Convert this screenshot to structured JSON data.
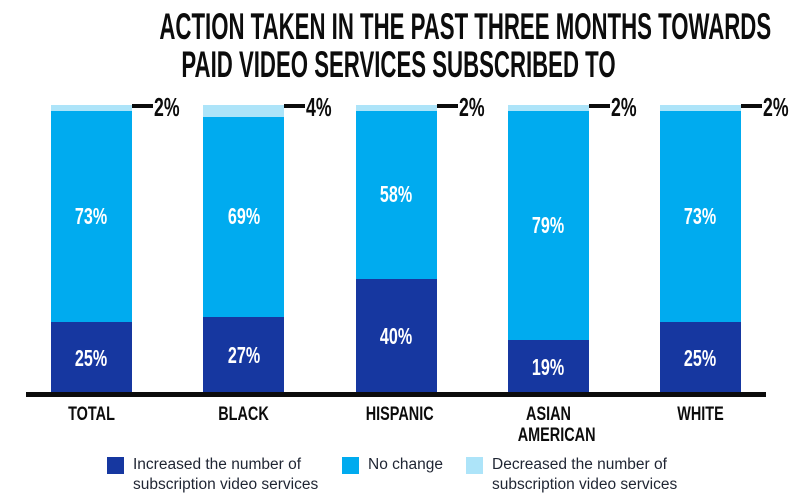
{
  "chart_data": {
    "type": "bar",
    "subtype": "stacked-percent",
    "title": "ACTION TAKEN IN THE PAST THREE MONTHS TOWARDS PAID VIDEO SERVICES SUBSCRIBED TO",
    "title_lines": [
      "ACTION TAKEN IN THE PAST THREE MONTHS TOWARDS",
      "PAID VIDEO SERVICES SUBSCRIBED TO"
    ],
    "categories": [
      "TOTAL",
      "BLACK",
      "HISPANIC",
      "ASIAN AMERICAN",
      "WHITE"
    ],
    "category_lines": [
      [
        "TOTAL"
      ],
      [
        "BLACK"
      ],
      [
        "HISPANIC"
      ],
      [
        "ASIAN",
        "AMERICAN"
      ],
      [
        "WHITE"
      ]
    ],
    "series": [
      {
        "key": "increased",
        "name": "Increased the number of subscription video services",
        "color": "#1637a0",
        "label_inside": true,
        "values": [
          25,
          27,
          40,
          19,
          25
        ]
      },
      {
        "key": "no-change",
        "name": "No change",
        "color": "#00abef",
        "label_inside": true,
        "values": [
          73,
          69,
          58,
          79,
          73
        ]
      },
      {
        "key": "decreased",
        "name": "Decreased the number of subscription video services",
        "color": "#ade4f9",
        "label_inside": false,
        "values": [
          2,
          4,
          2,
          2,
          2
        ]
      }
    ],
    "callout_labels": [
      "2%",
      "4%",
      "2%",
      "2%",
      "2%"
    ],
    "legend": [
      {
        "key": "increased",
        "color": "#1637a0",
        "lines": [
          "Increased the number of",
          "subscription video services"
        ]
      },
      {
        "key": "no-change",
        "color": "#00abef",
        "lines": [
          "No change"
        ]
      },
      {
        "key": "decreased",
        "color": "#ade4f9",
        "lines": [
          "Decreased the number of",
          "subscription video services"
        ]
      }
    ],
    "ylim": [
      0,
      100
    ],
    "grid": false,
    "legend_position": "bottom",
    "axis_color": "#0c0c0c",
    "text_color": "#0c0c0c",
    "bar_value_text_color": "#ffffff",
    "legend_text_color": "#1f2533"
  }
}
